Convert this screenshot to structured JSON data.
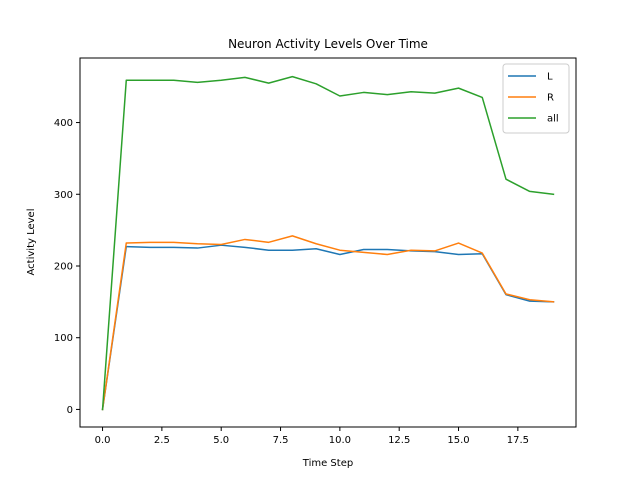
{
  "chart_data": {
    "type": "line",
    "title": "Neuron Activity Levels Over Time",
    "xlabel": "Time Step",
    "ylabel": "Activity Level",
    "xlim": [
      -0.95,
      19.95
    ],
    "ylim": [
      -24.5,
      490
    ],
    "xticks": [
      0.0,
      2.5,
      5.0,
      7.5,
      10.0,
      12.5,
      15.0,
      17.5
    ],
    "xtick_labels": [
      "0.0",
      "2.5",
      "5.0",
      "7.5",
      "10.0",
      "12.5",
      "15.0",
      "17.5"
    ],
    "yticks": [
      0,
      100,
      200,
      300,
      400
    ],
    "ytick_labels": [
      "0",
      "100",
      "200",
      "300",
      "400"
    ],
    "grid": false,
    "legend_position": "top-right",
    "x": [
      0,
      1,
      2,
      3,
      4,
      5,
      6,
      7,
      8,
      9,
      10,
      11,
      12,
      13,
      14,
      15,
      16,
      17,
      18,
      19
    ],
    "series": [
      {
        "name": "L",
        "color": "#1f77b4",
        "values": [
          0,
          227,
          226,
          226,
          225,
          229,
          226,
          222,
          222,
          224,
          216,
          223,
          223,
          221,
          220,
          216,
          217,
          160,
          151,
          150
        ]
      },
      {
        "name": "R",
        "color": "#ff7f0e",
        "values": [
          0,
          232,
          233,
          233,
          231,
          230,
          237,
          233,
          242,
          231,
          222,
          219,
          216,
          222,
          221,
          232,
          218,
          161,
          153,
          150
        ]
      },
      {
        "name": "all",
        "color": "#2ca02c",
        "values": [
          0,
          459,
          459,
          459,
          456,
          459,
          463,
          455,
          464,
          454,
          437,
          442,
          439,
          443,
          441,
          448,
          435,
          321,
          304,
          300
        ]
      }
    ]
  }
}
